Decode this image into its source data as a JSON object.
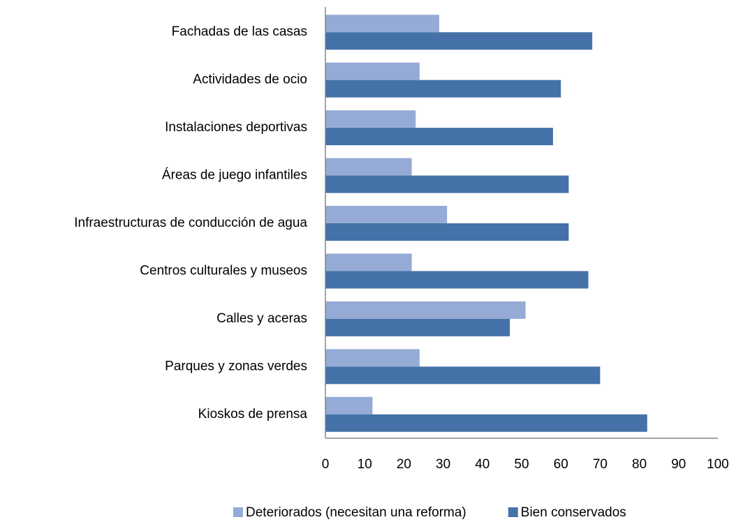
{
  "chart_data": {
    "type": "bar",
    "orientation": "horizontal",
    "categories": [
      "Fachadas de las casas",
      "Actividades de ocio",
      "Instalaciones deportivas",
      "Áreas de juego infantiles",
      "Infraestructuras de conducción de agua",
      "Centros culturales y museos",
      "Calles y aceras",
      "Parques y zonas verdes",
      "Kioskos de prensa"
    ],
    "series": [
      {
        "name": "Deteriorados (necesitan una reforma)",
        "color": "#95abd5",
        "values": [
          29,
          24,
          23,
          22,
          31,
          22,
          51,
          24,
          12
        ]
      },
      {
        "name": "Bien conservados",
        "color": "#4472a8",
        "values": [
          68,
          60,
          58,
          62,
          62,
          67,
          47,
          70,
          82
        ]
      }
    ],
    "xlim": [
      0,
      100
    ],
    "xticks": [
      0,
      10,
      20,
      30,
      40,
      50,
      60,
      70,
      80,
      90,
      100
    ],
    "grid": false,
    "legend": "bottom"
  }
}
